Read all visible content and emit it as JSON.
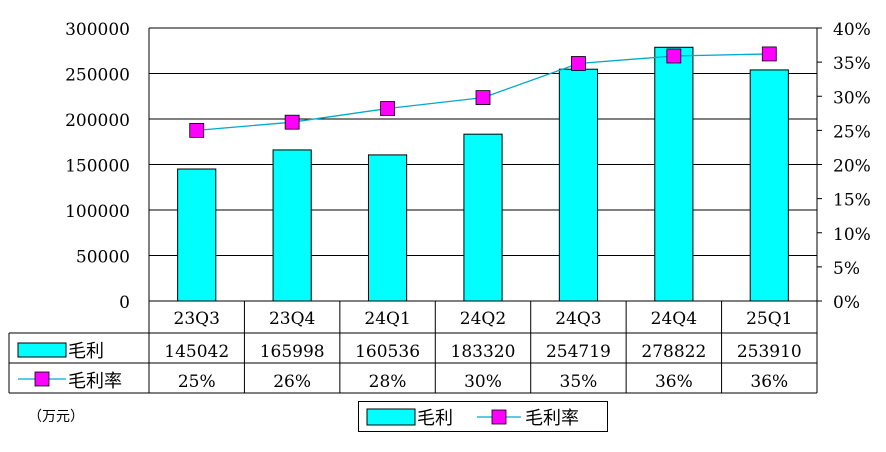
{
  "chart_data": {
    "type": "bar",
    "categories": [
      "23Q3",
      "23Q4",
      "24Q1",
      "24Q2",
      "24Q3",
      "24Q4",
      "25Q1"
    ],
    "series": [
      {
        "name": "毛利",
        "type": "bar",
        "axis": "left",
        "values": [
          145042,
          165998,
          160536,
          183320,
          254719,
          278822,
          253910
        ],
        "display": [
          "145042",
          "165998",
          "160536",
          "183320",
          "254719",
          "278822",
          "253910"
        ],
        "color": "#00FFFF"
      },
      {
        "name": "毛利率",
        "type": "line",
        "axis": "right",
        "values": [
          25,
          26,
          28,
          30,
          35,
          36,
          36
        ],
        "plot_values": [
          25,
          26.2,
          28.2,
          29.8,
          34.8,
          35.9,
          36.2
        ],
        "display": [
          "25%",
          "26%",
          "28%",
          "30%",
          "35%",
          "36%",
          "36%"
        ],
        "line_color": "#00AACC",
        "marker_color": "#FF00FF"
      }
    ],
    "y_left": {
      "ylim": [
        0,
        300000
      ],
      "ticks": [
        "0",
        "50000",
        "100000",
        "150000",
        "200000",
        "250000",
        "300000"
      ]
    },
    "y_right": {
      "ylim": [
        0,
        40
      ],
      "ticks": [
        "0%",
        "5%",
        "10%",
        "15%",
        "20%",
        "25%",
        "30%",
        "35%",
        "40%"
      ]
    },
    "unit_label": "（万元）",
    "grid": true,
    "legend": {
      "position": "bottom-center",
      "items": [
        "毛利",
        "毛利率"
      ]
    },
    "data_table": true
  }
}
